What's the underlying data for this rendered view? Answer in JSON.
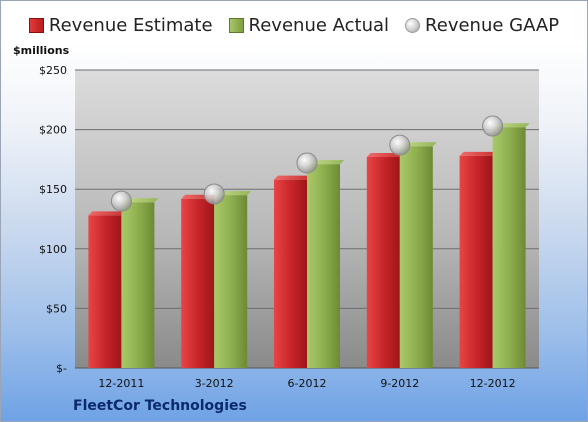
{
  "legend": {
    "estimate_label": "Revenue Estimate",
    "actual_label": "Revenue Actual",
    "gaap_label": "Revenue GAAP"
  },
  "unit_label": "$millions",
  "company_label": "FleetCor Technologies",
  "colors": {
    "estimate": "#c8262b",
    "actual": "#8fb04f",
    "gaap": "#b0b0b0"
  },
  "chart_data": {
    "type": "bar",
    "categories": [
      "12-2011",
      "3-2012",
      "6-2012",
      "9-2012",
      "12-2012"
    ],
    "series": [
      {
        "name": "Revenue Estimate",
        "values": [
          128,
          142,
          158,
          177,
          178
        ]
      },
      {
        "name": "Revenue Actual",
        "values": [
          139,
          145,
          171,
          186,
          202
        ]
      },
      {
        "name": "Revenue GAAP",
        "values": [
          140,
          146,
          172,
          187,
          203
        ]
      }
    ],
    "ylabel": "$millions",
    "ylim": [
      0,
      250
    ],
    "y_ticks": [
      0,
      50,
      100,
      150,
      200,
      250
    ],
    "y_tick_labels": [
      "$-",
      "$50",
      "$100",
      "$150",
      "$200",
      "$250"
    ],
    "grid": true,
    "legend_position": "top"
  }
}
